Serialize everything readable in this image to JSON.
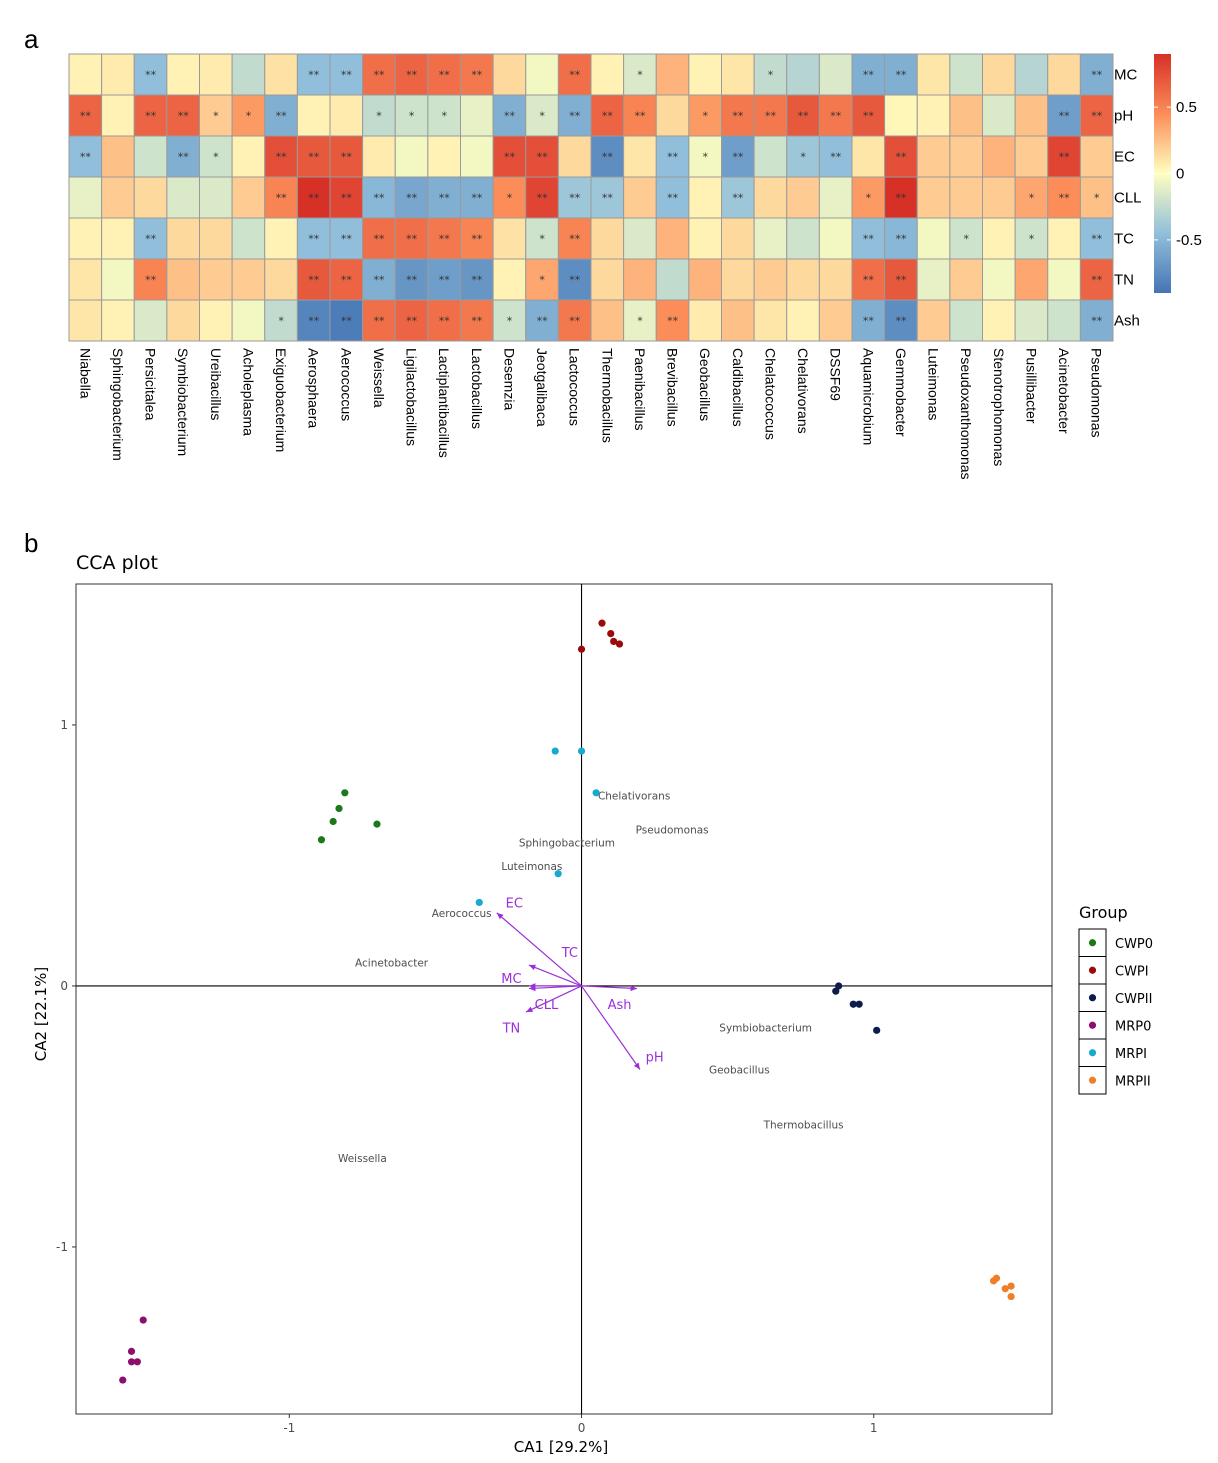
{
  "panels": {
    "a": "a",
    "b": "b"
  },
  "chart_data": [
    {
      "type": "heatmap",
      "rows": [
        "MC",
        "pH",
        "EC",
        "CLL",
        "TC",
        "TN",
        "Ash"
      ],
      "columns": [
        "Niabella",
        "Sphingobacterium",
        "Persicitalea",
        "Symbiobacterium",
        "Ureibacillus",
        "Acholeplasma",
        "Exiguobacterium",
        "Aerosphaera",
        "Aerococcus",
        "Weissella",
        "Ligilactobacillus",
        "Lactiplantibacillus",
        "Lactobacillus",
        "Desemzia",
        "Jeotgalibaca",
        "Lactococcus",
        "Thermobacillus",
        "Paenibacillus",
        "Brevibacillus",
        "Geobacillus",
        "Caldibacillus",
        "Chelatococcus",
        "Chelativorans",
        "DSSF69",
        "Aquamicrobium",
        "Gemmobacter",
        "Luteimonas",
        "Pseudoxanthomonas",
        "Stenotrophomonas",
        "Pusillibacter",
        "Acinetobacter",
        "Pseudomonas"
      ],
      "values": [
        [
          0.05,
          0.08,
          -0.45,
          0.05,
          0.08,
          -0.25,
          0.12,
          -0.45,
          -0.45,
          0.6,
          0.65,
          0.6,
          0.55,
          0.15,
          -0.05,
          0.6,
          0.05,
          -0.15,
          0.3,
          0.05,
          0.1,
          -0.25,
          -0.3,
          -0.15,
          -0.55,
          -0.55,
          0.1,
          -0.2,
          0.15,
          -0.3,
          0.15,
          -0.55
        ],
        [
          0.65,
          0.05,
          0.65,
          0.65,
          0.2,
          0.4,
          -0.55,
          0.05,
          0.08,
          -0.25,
          -0.2,
          -0.2,
          -0.1,
          -0.55,
          -0.15,
          -0.55,
          0.65,
          0.5,
          0.15,
          0.4,
          0.55,
          0.55,
          0.7,
          0.55,
          0.7,
          0.03,
          0.05,
          0.25,
          -0.15,
          0.25,
          -0.65,
          0.65
        ],
        [
          -0.45,
          0.25,
          -0.2,
          -0.55,
          -0.2,
          0.05,
          0.75,
          0.7,
          0.7,
          0.08,
          -0.05,
          0.05,
          -0.05,
          0.75,
          0.75,
          0.15,
          -0.75,
          0.1,
          -0.45,
          -0.05,
          -0.65,
          -0.2,
          -0.4,
          -0.45,
          0.1,
          0.75,
          0.2,
          0.2,
          0.3,
          0.2,
          0.8,
          0.2
        ],
        [
          -0.1,
          0.2,
          0.15,
          -0.15,
          -0.15,
          0.2,
          0.5,
          0.9,
          0.8,
          -0.5,
          -0.6,
          -0.55,
          -0.55,
          0.45,
          0.8,
          -0.4,
          -0.4,
          0.2,
          -0.45,
          0.05,
          -0.4,
          0.15,
          0.2,
          -0.1,
          0.4,
          0.9,
          0.2,
          0.2,
          0.2,
          0.35,
          0.45,
          0.25
        ],
        [
          0.05,
          0.05,
          -0.45,
          0.15,
          0.15,
          -0.2,
          0.05,
          -0.45,
          -0.45,
          0.6,
          0.6,
          0.55,
          0.5,
          0.12,
          -0.2,
          0.5,
          0.15,
          -0.15,
          0.3,
          0.05,
          0.15,
          -0.1,
          -0.2,
          -0.05,
          -0.45,
          -0.5,
          -0.05,
          -0.2,
          0.05,
          -0.2,
          0.05,
          -0.45
        ],
        [
          0.1,
          -0.05,
          0.5,
          0.25,
          0.2,
          0.2,
          0.15,
          0.7,
          0.65,
          -0.55,
          -0.7,
          -0.65,
          -0.7,
          0.05,
          0.35,
          -0.75,
          0.15,
          0.3,
          -0.25,
          0.3,
          0.15,
          0.2,
          0.15,
          0.15,
          0.6,
          0.7,
          -0.1,
          0.2,
          -0.05,
          0.35,
          -0.05,
          0.65
        ],
        [
          0.1,
          0.05,
          -0.15,
          0.15,
          0.05,
          -0.05,
          -0.25,
          -0.8,
          -0.85,
          0.6,
          0.65,
          0.6,
          0.55,
          -0.2,
          -0.55,
          0.55,
          0.25,
          -0.1,
          0.45,
          0.08,
          0.25,
          0.1,
          0.05,
          0.2,
          -0.55,
          -0.75,
          0.2,
          -0.2,
          0.05,
          -0.15,
          -0.2,
          -0.55
        ]
      ],
      "significance": [
        [
          "",
          "",
          "**",
          "",
          "",
          "",
          "",
          "**",
          "**",
          "**",
          "**",
          "**",
          "**",
          "",
          "",
          "**",
          "",
          "*",
          "",
          "",
          "",
          "*",
          "",
          "",
          "**",
          "**",
          "",
          "",
          "",
          "",
          "",
          "**"
        ],
        [
          "**",
          "",
          "**",
          "**",
          "*",
          "*",
          "**",
          "",
          "",
          "*",
          "*",
          "*",
          "",
          "**",
          "*",
          "**",
          "**",
          "**",
          "",
          "*",
          "**",
          "**",
          "**",
          "**",
          "**",
          "",
          "",
          "",
          "",
          "",
          "**",
          "**"
        ],
        [
          "**",
          "",
          "",
          "**",
          "*",
          "",
          "**",
          "**",
          "**",
          "",
          "",
          "",
          "",
          "**",
          "**",
          "",
          "**",
          "",
          "**",
          "*",
          "**",
          "",
          "*",
          "**",
          "",
          "**",
          "",
          "",
          "",
          "",
          "**",
          ""
        ],
        [
          "",
          "",
          "",
          "",
          "",
          "",
          "**",
          "**",
          "**",
          "**",
          "**",
          "**",
          "**",
          "*",
          "**",
          "**",
          "**",
          "",
          "**",
          "",
          "**",
          "",
          "",
          "",
          "*",
          "**",
          "",
          "",
          "",
          "*",
          "**",
          "*"
        ],
        [
          "",
          "",
          "**",
          "",
          "",
          "",
          "",
          "**",
          "**",
          "**",
          "**",
          "**",
          "**",
          "",
          "*",
          "**",
          "",
          "",
          "",
          "",
          "",
          "",
          "",
          "",
          "**",
          "**",
          "",
          "*",
          "",
          "*",
          "",
          "**"
        ],
        [
          "",
          "",
          "**",
          "",
          "",
          "",
          "",
          "**",
          "**",
          "**",
          "**",
          "**",
          "**",
          "",
          "*",
          "**",
          "",
          "",
          "",
          "",
          "",
          "",
          "",
          "",
          "**",
          "**",
          "",
          "",
          "",
          "",
          "",
          "**"
        ],
        [
          "",
          "",
          "",
          "",
          "",
          "",
          "*",
          "**",
          "**",
          "**",
          "**",
          "**",
          "**",
          "*",
          "**",
          "**",
          "",
          "*",
          "**",
          "",
          "",
          "",
          "",
          "",
          "**",
          "**",
          "",
          "",
          "",
          "",
          "",
          "**"
        ]
      ],
      "colorbar": {
        "ticks": [
          "0.5",
          "0",
          "-0.5"
        ],
        "tick_values": [
          0.5,
          0,
          -0.5
        ],
        "range": [
          -0.9,
          0.9
        ]
      },
      "colors": {
        "low": "#4575b4",
        "mid": "#ffffbf",
        "high": "#d73027"
      }
    },
    {
      "type": "scatter",
      "title": "CCA plot",
      "xlabel": "CA1   [29.2%]",
      "ylabel": "CA2   [22.1%]",
      "xlim": [
        -1.73,
        1.61
      ],
      "ylim": [
        -1.64,
        1.54
      ],
      "xticks": [
        -1,
        0,
        1
      ],
      "yticks": [
        -1,
        0,
        1
      ],
      "xtick_labels": [
        "-1",
        "0",
        "1"
      ],
      "ytick_labels": [
        "-1",
        "0",
        "1"
      ],
      "legend_title": "Group",
      "legend_position": "right",
      "groups": [
        {
          "name": "CWP0",
          "color": "#1a7a1a",
          "points": [
            [
              -0.81,
              0.74
            ],
            [
              -0.83,
              0.68
            ],
            [
              -0.85,
              0.63
            ],
            [
              -0.89,
              0.56
            ],
            [
              -0.7,
              0.62
            ]
          ]
        },
        {
          "name": "CWPI",
          "color": "#9b0b0b",
          "points": [
            [
              0.07,
              1.39
            ],
            [
              0.1,
              1.35
            ],
            [
              0.11,
              1.32
            ],
            [
              0.13,
              1.31
            ],
            [
              0.0,
              1.29
            ]
          ]
        },
        {
          "name": "CWPII",
          "color": "#0d1c4a",
          "points": [
            [
              0.88,
              0.0
            ],
            [
              0.87,
              -0.02
            ],
            [
              0.93,
              -0.07
            ],
            [
              0.95,
              -0.07
            ],
            [
              1.01,
              -0.17
            ]
          ]
        },
        {
          "name": "MRP0",
          "color": "#8c0e6f",
          "points": [
            [
              -1.5,
              -1.28
            ],
            [
              -1.54,
              -1.4
            ],
            [
              -1.54,
              -1.44
            ],
            [
              -1.52,
              -1.44
            ],
            [
              -1.57,
              -1.51
            ]
          ]
        },
        {
          "name": "MRPI",
          "color": "#17aacc",
          "points": [
            [
              -0.09,
              0.9
            ],
            [
              0.0,
              0.9
            ],
            [
              0.05,
              0.74
            ],
            [
              -0.08,
              0.43
            ],
            [
              -0.35,
              0.32
            ]
          ]
        },
        {
          "name": "MRPII",
          "color": "#f07e26",
          "points": [
            [
              1.41,
              -1.13
            ],
            [
              1.42,
              -1.12
            ],
            [
              1.45,
              -1.16
            ],
            [
              1.47,
              -1.15
            ],
            [
              1.47,
              -1.19
            ]
          ]
        }
      ],
      "species": [
        {
          "name": "Chelativorans",
          "x": 0.18,
          "y": 0.73
        },
        {
          "name": "Pseudomonas",
          "x": 0.31,
          "y": 0.6
        },
        {
          "name": "Sphingobacterium",
          "x": -0.05,
          "y": 0.55
        },
        {
          "name": "Luteimonas",
          "x": -0.17,
          "y": 0.46
        },
        {
          "name": "Aerococcus",
          "x": -0.41,
          "y": 0.28
        },
        {
          "name": "Acinetobacter",
          "x": -0.65,
          "y": 0.09
        },
        {
          "name": "Symbiobacterium",
          "x": 0.63,
          "y": -0.16
        },
        {
          "name": "Geobacillus",
          "x": 0.54,
          "y": -0.32
        },
        {
          "name": "Thermobacillus",
          "x": 0.76,
          "y": -0.53
        },
        {
          "name": "Weissella",
          "x": -0.75,
          "y": -0.66
        }
      ],
      "arrows": [
        {
          "name": "EC",
          "x": -0.29,
          "y": 0.28,
          "label_x": -0.23,
          "label_y": 0.32
        },
        {
          "name": "TC",
          "x": -0.18,
          "y": 0.08,
          "label_x": -0.04,
          "label_y": 0.13
        },
        {
          "name": "MC",
          "x": -0.18,
          "y": 0.0,
          "label_x": -0.24,
          "label_y": 0.03
        },
        {
          "name": "CLL",
          "x": -0.18,
          "y": -0.01,
          "label_x": -0.12,
          "label_y": -0.07
        },
        {
          "name": "TN",
          "x": -0.19,
          "y": -0.1,
          "label_x": -0.24,
          "label_y": -0.16
        },
        {
          "name": "Ash",
          "x": 0.19,
          "y": -0.01,
          "label_x": 0.13,
          "label_y": -0.07
        },
        {
          "name": "pH",
          "x": 0.2,
          "y": -0.32,
          "label_x": 0.25,
          "label_y": -0.27
        }
      ]
    }
  ]
}
